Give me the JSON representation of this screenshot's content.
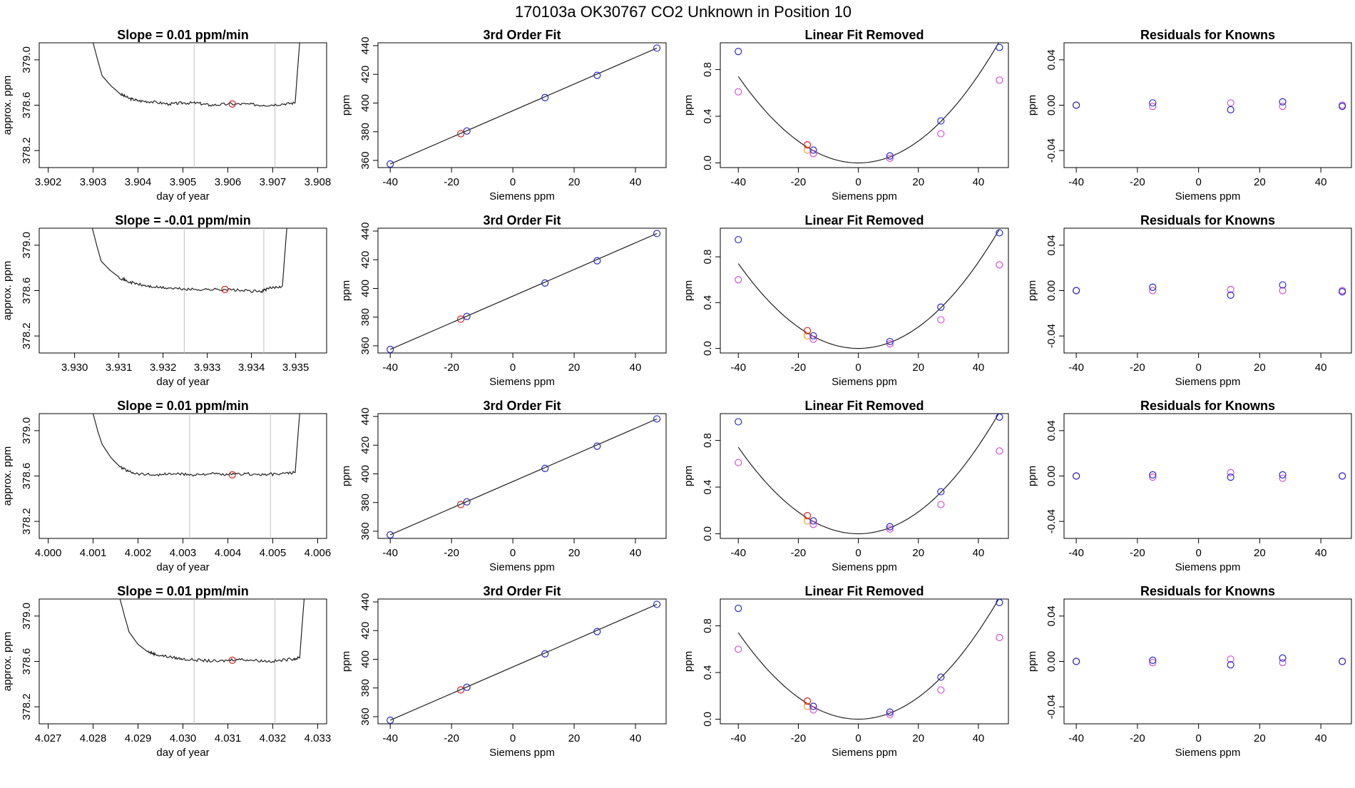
{
  "header": {
    "title": "170103a     OK30767   CO2 Unknown in Position  10"
  },
  "colors": {
    "blue": "#2828c8",
    "magenta": "#d44fd4",
    "red": "#e02020",
    "orange": "#f0a030",
    "gray": "#c0c0c0",
    "axis": "#000000",
    "line": "#222222"
  },
  "chart_data": [
    {
      "type": "line",
      "title": "Slope =  0.01  ppm/min",
      "xlabel": "day of year",
      "ylabel": "approx. ppm",
      "xlim": [
        3.9018,
        3.9082
      ],
      "ylim": [
        378.05,
        379.15
      ],
      "xticks": [
        "3.902",
        "3.903",
        "3.904",
        "3.905",
        "3.906",
        "3.907",
        "3.908"
      ],
      "yticks": [
        "378.2",
        "378.6",
        "379.0"
      ],
      "window": [
        3.90525,
        3.90705
      ],
      "marker": [
        3.9061,
        378.61
      ],
      "trace": [
        [
          3.903,
          379.15
        ],
        [
          3.9031,
          379.0
        ],
        [
          3.9032,
          378.86
        ],
        [
          3.9034,
          378.77
        ],
        [
          3.9036,
          378.7
        ],
        [
          3.9038,
          378.66
        ],
        [
          3.904,
          378.64
        ],
        [
          3.9043,
          378.63
        ],
        [
          3.9047,
          378.61
        ],
        [
          3.905,
          378.62
        ],
        [
          3.9053,
          378.62
        ],
        [
          3.9056,
          378.6
        ],
        [
          3.906,
          378.61
        ],
        [
          3.9064,
          378.61
        ],
        [
          3.9068,
          378.6
        ],
        [
          3.9072,
          378.61
        ],
        [
          3.9075,
          378.62
        ],
        [
          3.90755,
          378.9
        ],
        [
          3.9076,
          379.15
        ]
      ]
    },
    {
      "type": "scatter",
      "title": "3rd Order Fit",
      "xlabel": "Siemens ppm",
      "ylabel": "ppm",
      "xlim": [
        -44,
        50
      ],
      "ylim": [
        355,
        442
      ],
      "xticks": [
        -40,
        -20,
        0,
        20,
        40
      ],
      "yticks": [
        360,
        380,
        400,
        420,
        440
      ],
      "fit_line": [
        [
          -40,
          357.5
        ],
        [
          47,
          438.3
        ]
      ],
      "points_blue": [
        [
          -40,
          357.5
        ],
        [
          -15,
          380.5
        ],
        [
          10.5,
          403.8
        ],
        [
          27.5,
          419.3
        ],
        [
          47,
          438.3
        ]
      ],
      "points_red": [
        [
          -17,
          378.6
        ]
      ]
    },
    {
      "type": "scatter",
      "title": "Linear Fit Removed",
      "xlabel": "Siemens ppm",
      "ylabel": "ppm",
      "xlim": [
        -46,
        50
      ],
      "ylim": [
        -0.04,
        1.03
      ],
      "xticks": [
        -40,
        -20,
        0,
        20,
        40
      ],
      "yticks": [
        0.0,
        0.4,
        0.8
      ],
      "curve_coef": 0.000467,
      "points_blue": [
        [
          -40,
          0.955
        ],
        [
          -15,
          0.11
        ],
        [
          10.5,
          0.06
        ],
        [
          27.5,
          0.36
        ],
        [
          47,
          0.99
        ]
      ],
      "points_magenta": [
        [
          -40,
          0.61
        ],
        [
          -15,
          0.08
        ],
        [
          10.5,
          0.04
        ],
        [
          27.5,
          0.25
        ],
        [
          47,
          0.71
        ]
      ],
      "points_red": [
        [
          -17,
          0.155
        ]
      ],
      "points_orange": [
        [
          -17,
          0.11
        ]
      ]
    },
    {
      "type": "scatter",
      "title": "Residuals for Knowns",
      "xlabel": "Siemens ppm",
      "ylabel": "ppm",
      "xlim": [
        -44,
        50
      ],
      "ylim": [
        -0.055,
        0.055
      ],
      "xticks": [
        -40,
        -20,
        0,
        20,
        40
      ],
      "yticks": [
        -0.04,
        0.0,
        0.04
      ],
      "points_blue": [
        [
          -40,
          0.0
        ],
        [
          -15,
          0.002
        ],
        [
          10.5,
          -0.004
        ],
        [
          27.5,
          0.003
        ],
        [
          47,
          -0.001
        ]
      ],
      "points_magenta": [
        [
          -40,
          0.0
        ],
        [
          -15,
          -0.001
        ],
        [
          10.5,
          0.002
        ],
        [
          27.5,
          -0.001
        ],
        [
          47,
          0.0
        ]
      ]
    },
    {
      "type": "line",
      "title": "Slope =  -0.01  ppm/min",
      "xlabel": "day of year",
      "ylabel": "approx. ppm",
      "xlim": [
        3.9292,
        3.9357
      ],
      "ylim": [
        378.05,
        379.15
      ],
      "xticks": [
        "3.930",
        "3.931",
        "3.932",
        "3.933",
        "3.934",
        "3.935"
      ],
      "yticks": [
        "378.2",
        "378.6",
        "379.0"
      ],
      "window": [
        3.93248,
        3.93428
      ],
      "marker": [
        3.9334,
        378.61
      ],
      "trace": [
        [
          3.9304,
          379.15
        ],
        [
          3.9305,
          379.0
        ],
        [
          3.9306,
          378.86
        ],
        [
          3.9308,
          378.78
        ],
        [
          3.931,
          378.72
        ],
        [
          3.9312,
          378.68
        ],
        [
          3.9315,
          378.65
        ],
        [
          3.9318,
          378.63
        ],
        [
          3.9322,
          378.62
        ],
        [
          3.9326,
          378.61
        ],
        [
          3.933,
          378.61
        ],
        [
          3.9334,
          378.61
        ],
        [
          3.9338,
          378.6
        ],
        [
          3.9342,
          378.59
        ],
        [
          3.9344,
          378.62
        ],
        [
          3.9347,
          378.64
        ],
        [
          3.93475,
          378.9
        ],
        [
          3.9348,
          379.15
        ]
      ]
    },
    {
      "type": "scatter",
      "title": "3rd Order Fit",
      "xlabel": "Siemens ppm",
      "ylabel": "ppm",
      "xlim": [
        -44,
        50
      ],
      "ylim": [
        355,
        442
      ],
      "xticks": [
        -40,
        -20,
        0,
        20,
        40
      ],
      "yticks": [
        360,
        380,
        400,
        420,
        440
      ],
      "fit_line": [
        [
          -40,
          357.5
        ],
        [
          47,
          438.3
        ]
      ],
      "points_blue": [
        [
          -40,
          357.5
        ],
        [
          -15,
          380.5
        ],
        [
          10.5,
          403.8
        ],
        [
          27.5,
          419.3
        ],
        [
          47,
          438.3
        ]
      ],
      "points_red": [
        [
          -17,
          378.6
        ]
      ]
    },
    {
      "type": "scatter",
      "title": "Linear Fit Removed",
      "xlabel": "Siemens ppm",
      "ylabel": "ppm",
      "xlim": [
        -46,
        50
      ],
      "ylim": [
        -0.04,
        1.05
      ],
      "xticks": [
        -40,
        -20,
        0,
        20,
        40
      ],
      "yticks": [
        0.0,
        0.4,
        0.8
      ],
      "curve_coef": 0.000467,
      "points_blue": [
        [
          -40,
          0.95
        ],
        [
          -15,
          0.11
        ],
        [
          10.5,
          0.06
        ],
        [
          27.5,
          0.36
        ],
        [
          47,
          1.01
        ]
      ],
      "points_magenta": [
        [
          -40,
          0.6
        ],
        [
          -15,
          0.08
        ],
        [
          10.5,
          0.04
        ],
        [
          27.5,
          0.25
        ],
        [
          47,
          0.73
        ]
      ],
      "points_red": [
        [
          -17,
          0.155
        ]
      ],
      "points_orange": [
        [
          -17,
          0.11
        ]
      ]
    },
    {
      "type": "scatter",
      "title": "Residuals for Knowns",
      "xlabel": "Siemens ppm",
      "ylabel": "ppm",
      "xlim": [
        -44,
        50
      ],
      "ylim": [
        -0.055,
        0.055
      ],
      "xticks": [
        -40,
        -20,
        0,
        20,
        40
      ],
      "yticks": [
        -0.04,
        0.0,
        0.04
      ],
      "points_blue": [
        [
          -40,
          0.0
        ],
        [
          -15,
          0.003
        ],
        [
          10.5,
          -0.004
        ],
        [
          27.5,
          0.005
        ],
        [
          47,
          -0.001
        ]
      ],
      "points_magenta": [
        [
          -40,
          0.0
        ],
        [
          -15,
          0.0
        ],
        [
          10.5,
          0.001
        ],
        [
          27.5,
          0.0
        ],
        [
          47,
          0.0
        ]
      ]
    },
    {
      "type": "line",
      "title": "Slope =  0.01  ppm/min",
      "xlabel": "day of year",
      "ylabel": "approx. ppm",
      "xlim": [
        3.9998,
        4.0062
      ],
      "ylim": [
        378.05,
        379.15
      ],
      "xticks": [
        "4.000",
        "4.001",
        "4.002",
        "4.003",
        "4.004",
        "4.005",
        "4.006"
      ],
      "yticks": [
        "378.2",
        "378.6",
        "379.0"
      ],
      "window": [
        4.00315,
        4.00495
      ],
      "marker": [
        4.0041,
        378.61
      ],
      "trace": [
        [
          4.001,
          379.15
        ],
        [
          4.0011,
          379.0
        ],
        [
          4.0012,
          378.88
        ],
        [
          4.0014,
          378.76
        ],
        [
          4.0016,
          378.68
        ],
        [
          4.0018,
          378.64
        ],
        [
          4.002,
          378.62
        ],
        [
          4.0024,
          378.61
        ],
        [
          4.0028,
          378.62
        ],
        [
          4.0032,
          378.61
        ],
        [
          4.0036,
          378.62
        ],
        [
          4.004,
          378.61
        ],
        [
          4.0044,
          378.62
        ],
        [
          4.0048,
          378.61
        ],
        [
          4.0052,
          378.62
        ],
        [
          4.0055,
          378.63
        ],
        [
          4.00555,
          378.9
        ],
        [
          4.0056,
          379.15
        ]
      ]
    },
    {
      "type": "scatter",
      "title": "3rd Order Fit",
      "xlabel": "Siemens ppm",
      "ylabel": "ppm",
      "xlim": [
        -44,
        50
      ],
      "ylim": [
        355,
        442
      ],
      "xticks": [
        -40,
        -20,
        0,
        20,
        40
      ],
      "yticks": [
        360,
        380,
        400,
        420,
        440
      ],
      "fit_line": [
        [
          -40,
          357.5
        ],
        [
          47,
          438.3
        ]
      ],
      "points_blue": [
        [
          -40,
          357.5
        ],
        [
          -15,
          380.5
        ],
        [
          10.5,
          403.8
        ],
        [
          27.5,
          419.3
        ],
        [
          47,
          438.3
        ]
      ],
      "points_red": [
        [
          -17,
          378.6
        ]
      ]
    },
    {
      "type": "scatter",
      "title": "Linear Fit Removed",
      "xlabel": "Siemens ppm",
      "ylabel": "ppm",
      "xlim": [
        -46,
        50
      ],
      "ylim": [
        -0.04,
        1.03
      ],
      "xticks": [
        -40,
        -20,
        0,
        20,
        40
      ],
      "yticks": [
        0.0,
        0.4,
        0.8
      ],
      "curve_coef": 0.000467,
      "points_blue": [
        [
          -40,
          0.96
        ],
        [
          -15,
          0.11
        ],
        [
          10.5,
          0.06
        ],
        [
          27.5,
          0.36
        ],
        [
          47,
          1.0
        ]
      ],
      "points_magenta": [
        [
          -40,
          0.61
        ],
        [
          -15,
          0.08
        ],
        [
          10.5,
          0.04
        ],
        [
          27.5,
          0.25
        ],
        [
          47,
          0.71
        ]
      ],
      "points_red": [
        [
          -17,
          0.155
        ]
      ],
      "points_orange": [
        [
          -17,
          0.11
        ]
      ]
    },
    {
      "type": "scatter",
      "title": "Residuals for Knowns",
      "xlabel": "Siemens ppm",
      "ylabel": "ppm",
      "xlim": [
        -44,
        50
      ],
      "ylim": [
        -0.055,
        0.055
      ],
      "xticks": [
        -40,
        -20,
        0,
        20,
        40
      ],
      "yticks": [
        -0.04,
        0.0,
        0.04
      ],
      "points_blue": [
        [
          -40,
          0.0
        ],
        [
          -15,
          0.001
        ],
        [
          10.5,
          -0.001
        ],
        [
          27.5,
          0.001
        ],
        [
          47,
          0.0
        ]
      ],
      "points_magenta": [
        [
          -40,
          0.0
        ],
        [
          -15,
          -0.001
        ],
        [
          10.5,
          0.003
        ],
        [
          27.5,
          -0.002
        ],
        [
          47,
          0.0
        ]
      ]
    },
    {
      "type": "line",
      "title": "Slope =  0.01  ppm/min",
      "xlabel": "day of year",
      "ylabel": "approx. ppm",
      "xlim": [
        4.0268,
        4.0332
      ],
      "ylim": [
        378.05,
        379.15
      ],
      "xticks": [
        "4.027",
        "4.028",
        "4.029",
        "4.030",
        "4.031",
        "4.032",
        "4.033"
      ],
      "yticks": [
        "378.2",
        "378.6",
        "379.0"
      ],
      "window": [
        4.03025,
        4.03205
      ],
      "marker": [
        4.0311,
        378.61
      ],
      "trace": [
        [
          4.0286,
          379.15
        ],
        [
          4.0287,
          379.0
        ],
        [
          4.0288,
          378.86
        ],
        [
          4.029,
          378.75
        ],
        [
          4.0292,
          378.69
        ],
        [
          4.0294,
          378.66
        ],
        [
          4.0297,
          378.64
        ],
        [
          4.03,
          378.62
        ],
        [
          4.0304,
          378.61
        ],
        [
          4.0308,
          378.6
        ],
        [
          4.0312,
          378.62
        ],
        [
          4.0316,
          378.61
        ],
        [
          4.032,
          378.6
        ],
        [
          4.0324,
          378.62
        ],
        [
          4.0326,
          378.63
        ],
        [
          4.03265,
          378.9
        ],
        [
          4.0327,
          379.15
        ]
      ]
    },
    {
      "type": "scatter",
      "title": "3rd Order Fit",
      "xlabel": "Siemens ppm",
      "ylabel": "ppm",
      "xlim": [
        -44,
        50
      ],
      "ylim": [
        355,
        442
      ],
      "xticks": [
        -40,
        -20,
        0,
        20,
        40
      ],
      "yticks": [
        360,
        380,
        400,
        420,
        440
      ],
      "fit_line": [
        [
          -40,
          357.5
        ],
        [
          47,
          438.3
        ]
      ],
      "points_blue": [
        [
          -40,
          357.5
        ],
        [
          -15,
          380.5
        ],
        [
          10.5,
          403.8
        ],
        [
          27.5,
          419.3
        ],
        [
          47,
          438.3
        ]
      ],
      "points_red": [
        [
          -17,
          378.6
        ]
      ]
    },
    {
      "type": "scatter",
      "title": "Linear Fit Removed",
      "xlabel": "Siemens ppm",
      "ylabel": "ppm",
      "xlim": [
        -46,
        50
      ],
      "ylim": [
        -0.04,
        1.03
      ],
      "xticks": [
        -40,
        -20,
        0,
        20,
        40
      ],
      "yticks": [
        0.0,
        0.4,
        0.8
      ],
      "curve_coef": 0.000467,
      "points_blue": [
        [
          -40,
          0.95
        ],
        [
          -15,
          0.11
        ],
        [
          10.5,
          0.06
        ],
        [
          27.5,
          0.36
        ],
        [
          47,
          1.0
        ]
      ],
      "points_magenta": [
        [
          -40,
          0.6
        ],
        [
          -15,
          0.08
        ],
        [
          10.5,
          0.04
        ],
        [
          27.5,
          0.25
        ],
        [
          47,
          0.7
        ]
      ],
      "points_red": [
        [
          -17,
          0.155
        ]
      ],
      "points_orange": [
        [
          -17,
          0.11
        ]
      ]
    },
    {
      "type": "scatter",
      "title": "Residuals for Knowns",
      "xlabel": "Siemens ppm",
      "ylabel": "ppm",
      "xlim": [
        -44,
        50
      ],
      "ylim": [
        -0.055,
        0.055
      ],
      "xticks": [
        -40,
        -20,
        0,
        20,
        40
      ],
      "yticks": [
        -0.04,
        0.0,
        0.04
      ],
      "points_blue": [
        [
          -40,
          0.0
        ],
        [
          -15,
          0.001
        ],
        [
          10.5,
          -0.003
        ],
        [
          27.5,
          0.003
        ],
        [
          47,
          0.0
        ]
      ],
      "points_magenta": [
        [
          -40,
          0.0
        ],
        [
          -15,
          -0.001
        ],
        [
          10.5,
          0.002
        ],
        [
          27.5,
          -0.001
        ],
        [
          47,
          0.0
        ]
      ]
    }
  ]
}
